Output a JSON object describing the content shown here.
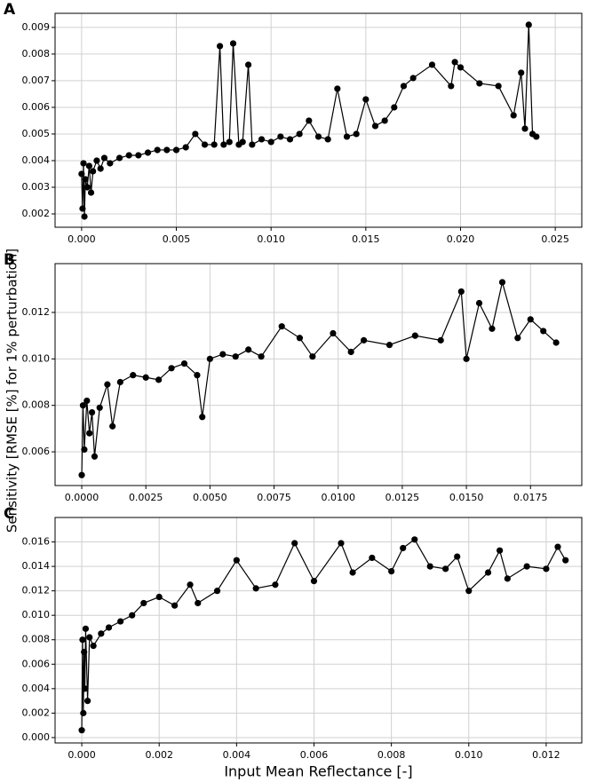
{
  "chart_data": [
    {
      "type": "line",
      "title": "A",
      "color": "#000000",
      "marker": true,
      "grid": true,
      "x": [
        0,
        5e-05,
        0.0001,
        0.00015,
        0.0002,
        0.0003,
        0.0004,
        0.0005,
        0.0006,
        0.0008,
        0.001,
        0.0012,
        0.0015,
        0.002,
        0.0025,
        0.003,
        0.0035,
        0.004,
        0.0045,
        0.005,
        0.0055,
        0.006,
        0.0065,
        0.007,
        0.0073,
        0.0075,
        0.0078,
        0.008,
        0.0083,
        0.0085,
        0.0088,
        0.009,
        0.0095,
        0.01,
        0.0105,
        0.011,
        0.0115,
        0.012,
        0.0125,
        0.013,
        0.0135,
        0.014,
        0.0145,
        0.015,
        0.0155,
        0.016,
        0.0165,
        0.017,
        0.0175,
        0.0185,
        0.0195,
        0.0197,
        0.02,
        0.021,
        0.022,
        0.0228,
        0.0232,
        0.0234,
        0.0236,
        0.0238,
        0.024
      ],
      "values": [
        0.0035,
        0.0022,
        0.0039,
        0.0019,
        0.0033,
        0.003,
        0.0038,
        0.0028,
        0.0036,
        0.004,
        0.0037,
        0.0041,
        0.0039,
        0.0041,
        0.0042,
        0.0042,
        0.0043,
        0.0044,
        0.0044,
        0.0044,
        0.0045,
        0.005,
        0.0046,
        0.0046,
        0.0083,
        0.0046,
        0.0047,
        0.0084,
        0.0046,
        0.0047,
        0.0076,
        0.0046,
        0.0048,
        0.0047,
        0.0049,
        0.0048,
        0.005,
        0.0055,
        0.0049,
        0.0048,
        0.0067,
        0.0049,
        0.005,
        0.0063,
        0.0053,
        0.0055,
        0.006,
        0.0068,
        0.0071,
        0.0076,
        0.0068,
        0.0077,
        0.0075,
        0.0069,
        0.0068,
        0.0057,
        0.0073,
        0.0052,
        0.0091,
        0.005,
        0.0049
      ],
      "xlim": [
        -0.0014,
        0.0264
      ],
      "ylim": [
        0.0015,
        0.00953
      ],
      "xticks": [
        {
          "value": 0,
          "label": "0.000"
        },
        0.005,
        {
          "value": 0.01,
          "label": "0.010"
        },
        0.015,
        {
          "value": 0.02,
          "label": "0.020"
        },
        0.025
      ],
      "yticks": [
        0.002,
        0.003,
        0.004,
        0.005,
        0.006,
        0.007,
        0.008,
        0.009
      ]
    },
    {
      "type": "line",
      "title": "B",
      "color": "#000000",
      "marker": true,
      "grid": true,
      "ylabel": "Sensitivity [RMSE [%] for 1% perturbation]",
      "x": [
        0,
        5e-05,
        0.0001,
        0.0002,
        0.0003,
        0.0004,
        0.0005,
        0.0007,
        0.001,
        0.0012,
        0.0015,
        0.002,
        0.0025,
        0.003,
        0.0035,
        0.004,
        0.0045,
        0.0047,
        0.005,
        0.0055,
        0.006,
        0.0065,
        0.007,
        0.0078,
        0.0085,
        0.009,
        0.0098,
        0.0105,
        0.011,
        0.012,
        0.013,
        0.014,
        0.0148,
        0.015,
        0.0155,
        0.016,
        0.0164,
        0.017,
        0.0175,
        0.018,
        0.0185
      ],
      "values": [
        0.005,
        0.008,
        0.0061,
        0.0082,
        0.0068,
        0.0077,
        0.0058,
        0.0079,
        0.0089,
        0.0071,
        0.009,
        0.0093,
        0.0092,
        0.0091,
        0.0096,
        0.0098,
        0.0093,
        0.0075,
        0.01,
        0.0102,
        0.0101,
        0.0104,
        0.0101,
        0.0114,
        0.0109,
        0.0101,
        0.0111,
        0.0103,
        0.0108,
        0.0106,
        0.011,
        0.0108,
        0.0129,
        0.01,
        0.0124,
        0.0113,
        0.0133,
        0.0109,
        0.0117,
        0.0112,
        0.0107
      ],
      "xlim": [
        -0.00104,
        0.0195
      ],
      "ylim": [
        0.00455,
        0.0141
      ],
      "xticks": [
        {
          "value": 0,
          "label": "0.0000"
        },
        0.0025,
        {
          "value": 0.005,
          "label": "0.0050"
        },
        0.0075,
        {
          "value": 0.01,
          "label": "0.0100"
        },
        0.0125,
        {
          "value": 0.015,
          "label": "0.0150"
        },
        0.0175
      ],
      "yticks": [
        0.006,
        0.008,
        {
          "value": 0.01,
          "label": "0.010"
        },
        0.012
      ]
    },
    {
      "type": "line",
      "title": "C",
      "color": "#000000",
      "marker": true,
      "grid": true,
      "xlabel": "Input Mean Reflectance [-]",
      "x": [
        0,
        2e-05,
        4e-05,
        6e-05,
        8e-05,
        0.0001,
        0.00015,
        0.0002,
        0.0003,
        0.0005,
        0.0007,
        0.001,
        0.0013,
        0.0016,
        0.002,
        0.0024,
        0.0028,
        0.003,
        0.0035,
        0.004,
        0.0045,
        0.005,
        0.0055,
        0.006,
        0.0067,
        0.007,
        0.0075,
        0.008,
        0.0083,
        0.0086,
        0.009,
        0.0094,
        0.0097,
        0.01,
        0.0105,
        0.0108,
        0.011,
        0.0115,
        0.012,
        0.0123,
        0.0125
      ],
      "values": [
        0.0006,
        0.008,
        0.002,
        0.007,
        0.004,
        0.0089,
        0.003,
        0.0082,
        0.0075,
        0.0085,
        0.009,
        0.0095,
        0.01,
        0.011,
        0.0115,
        0.0108,
        0.0125,
        0.011,
        0.012,
        0.0145,
        0.0122,
        0.0125,
        0.0159,
        0.0128,
        0.0159,
        0.0135,
        0.0147,
        0.0136,
        0.0155,
        0.0162,
        0.014,
        0.0138,
        0.0148,
        0.012,
        0.0135,
        0.0153,
        0.013,
        0.014,
        0.0138,
        0.0156,
        0.0145
      ],
      "xlim": [
        -0.00069,
        0.01292
      ],
      "ylim": [
        -0.00044,
        0.018
      ],
      "xticks": [
        {
          "value": 0,
          "label": "0.000"
        },
        0.002,
        0.004,
        0.006,
        0.008,
        {
          "value": 0.01,
          "label": "0.010"
        },
        0.012
      ],
      "yticks": [
        {
          "value": 0,
          "label": "0.000"
        },
        0.002,
        0.004,
        0.006,
        0.008,
        {
          "value": 0.01,
          "label": "0.010"
        },
        0.012,
        0.014,
        0.016
      ]
    }
  ]
}
